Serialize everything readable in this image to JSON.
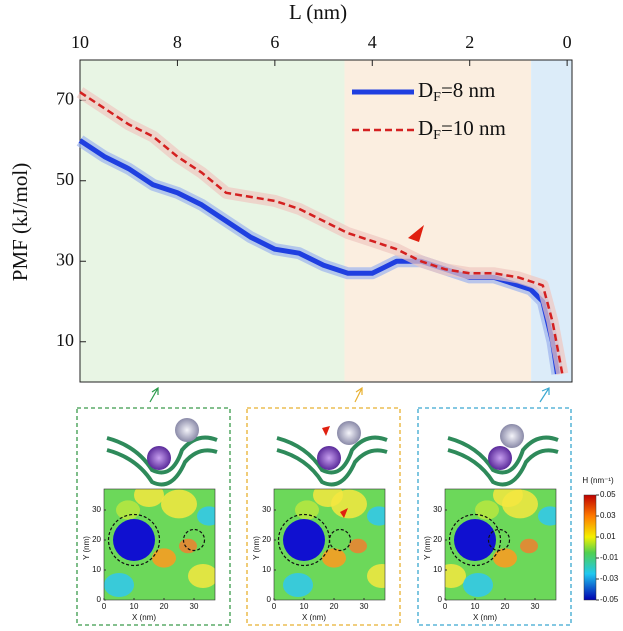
{
  "chart_data": {
    "type": "line",
    "xlabel": "L (nm)",
    "ylabel": "PMF (kJ/mol)",
    "xlim": [
      10,
      -0.1
    ],
    "ylim": [
      0,
      80
    ],
    "xticks": [
      10,
      8,
      6,
      4,
      2,
      0
    ],
    "yticks": [
      70,
      50,
      30,
      10
    ],
    "legend": "upper right",
    "regions": [
      {
        "from": 10,
        "to": 4.57,
        "color": "#e8f5e4"
      },
      {
        "from": 4.57,
        "to": 0.74,
        "color": "#fbeee0"
      },
      {
        "from": 0.74,
        "to": -0.1,
        "color": "#dcecf9"
      }
    ],
    "series": [
      {
        "name": "DF=8 nm",
        "color": "#1f3fe0",
        "dash": false,
        "band_color": "#9cb4ee",
        "x": [
          10,
          9.5,
          9,
          8.5,
          8,
          7.5,
          7,
          6.5,
          6,
          5.5,
          5,
          4.5,
          4,
          3.5,
          3,
          2.5,
          2,
          1.5,
          1,
          0.75,
          0.5,
          0.3,
          0.2
        ],
        "values": [
          60,
          56,
          53,
          49,
          47,
          44,
          40,
          36,
          33,
          32,
          29,
          27,
          27,
          30,
          30,
          28,
          26,
          26,
          24,
          23,
          20,
          10,
          2
        ]
      },
      {
        "name": "DF=10 nm",
        "color": "#d42020",
        "dash": true,
        "band_color": "#f0c8c0",
        "x": [
          10,
          9.5,
          9,
          8.5,
          8,
          7.5,
          7,
          6.5,
          6,
          5.5,
          5,
          4.5,
          4,
          3.5,
          3,
          2.5,
          2,
          1.5,
          1,
          0.5,
          0.3,
          0.1
        ],
        "values": [
          72,
          68,
          64,
          61,
          56,
          52,
          47,
          46,
          45,
          43,
          40,
          37,
          35,
          33,
          30,
          28,
          27,
          27,
          26,
          24,
          15,
          2
        ]
      }
    ]
  },
  "panels": [
    {
      "xlabel": "X (nm)",
      "ylabel": "Y (nm)",
      "xticks": [
        0,
        10,
        20,
        30
      ],
      "yticks": [
        0,
        10,
        20,
        30
      ]
    },
    {
      "xlabel": "X (nm)",
      "ylabel": "Y (nm)",
      "xticks": [
        0,
        10,
        20,
        30
      ],
      "yticks": [
        0,
        10,
        20,
        30
      ]
    },
    {
      "xlabel": "X (nm)",
      "ylabel": "Y (nm)",
      "xticks": [
        0,
        10,
        20,
        30
      ],
      "yticks": [
        0,
        10,
        20,
        30
      ]
    }
  ],
  "colorbar": {
    "label": "H (nm⁻¹)",
    "lim": [
      -0.05,
      0.05
    ],
    "ticks": [
      0.05,
      0.03,
      0.01,
      -0.01,
      -0.03,
      -0.05
    ]
  }
}
